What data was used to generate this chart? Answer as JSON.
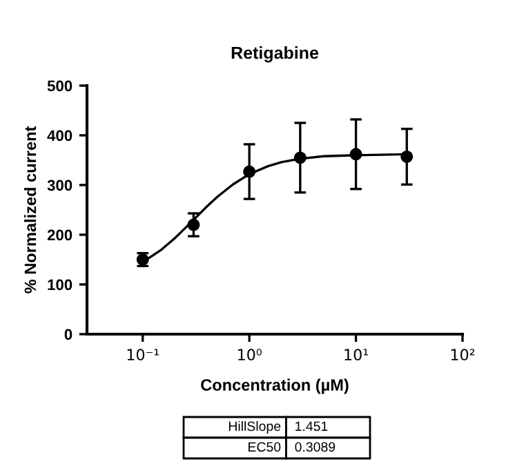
{
  "chart_data": {
    "type": "scatter",
    "title": "Retigabine",
    "xlabel": "Concentration (µM)",
    "ylabel": "% Normalized current",
    "log": "x",
    "xlim": [
      0.03,
      100
    ],
    "xticks": [
      {
        "value": 0.1,
        "label": "10⁻¹"
      },
      {
        "value": 1,
        "label": "10⁰"
      },
      {
        "value": 10,
        "label": "10¹"
      },
      {
        "value": 100,
        "label": "10²"
      }
    ],
    "ylim": [
      0,
      500
    ],
    "yticks": [
      0,
      100,
      200,
      300,
      400,
      500
    ],
    "grid": false,
    "legend": false,
    "series": [
      {
        "color": "#000000",
        "marker": "circle",
        "x": [
          0.1,
          0.3,
          1,
          3,
          10,
          30
        ],
        "values": [
          150,
          220,
          327,
          355,
          362,
          357
        ],
        "errors": [
          13,
          23,
          55,
          70,
          70,
          56
        ]
      },
      {
        "type": "line",
        "color": "#000000",
        "marker": "none",
        "line_style": "solid",
        "x": [
          0.1,
          0.15,
          0.2,
          0.3,
          0.4,
          0.5,
          0.7,
          1,
          1.5,
          2,
          3,
          5,
          10,
          30
        ],
        "values": [
          145,
          170,
          193,
          230,
          257,
          276,
          301,
          322,
          338,
          346,
          353,
          358,
          360,
          362
        ]
      }
    ],
    "annotations": [
      "HillSlope",
      "1.451",
      "EC50",
      "0.3089"
    ]
  }
}
